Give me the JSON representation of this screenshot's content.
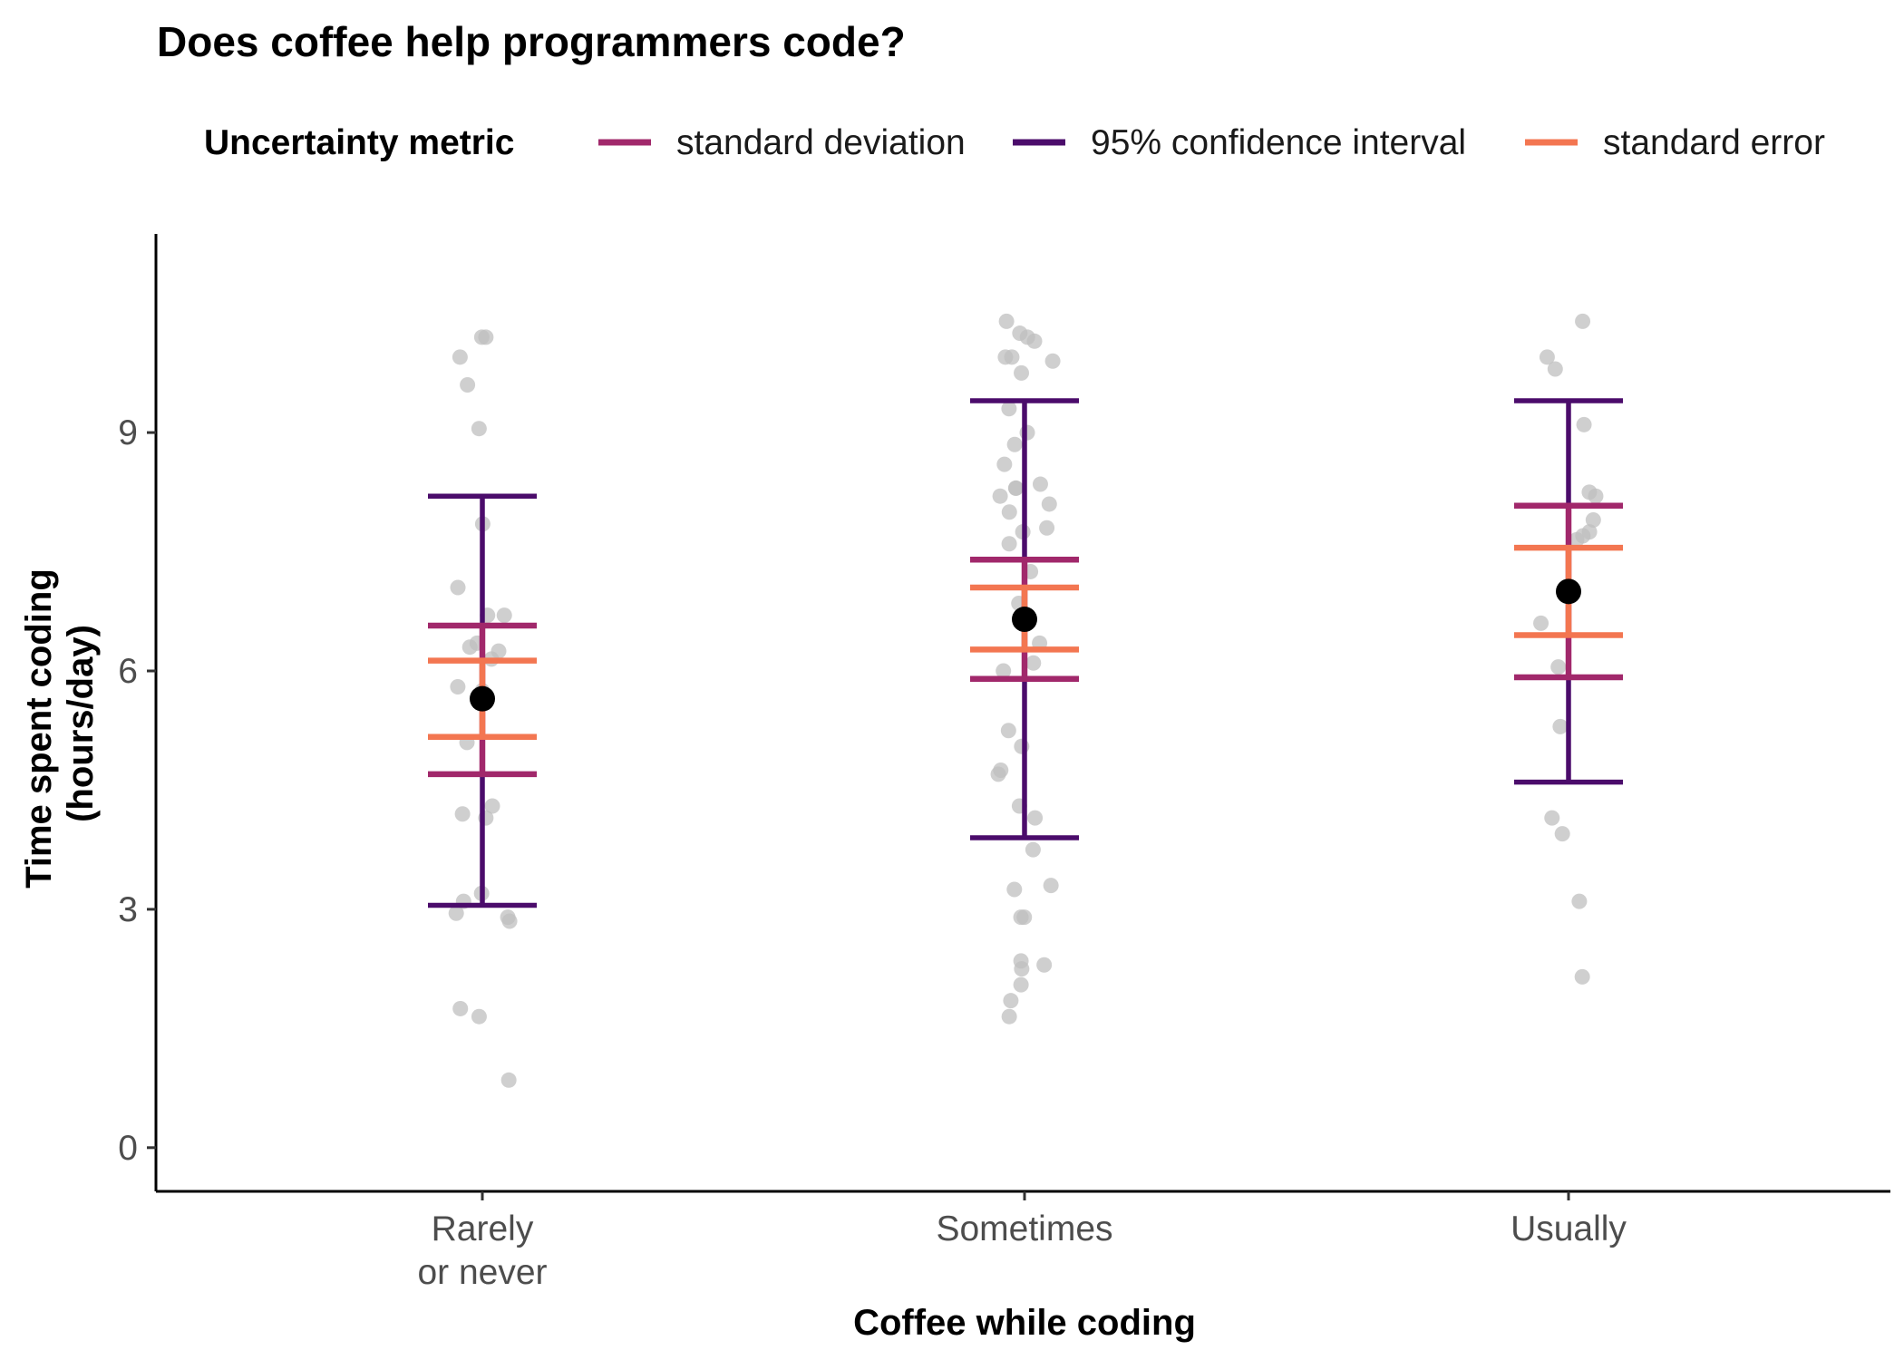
{
  "chart_data": {
    "type": "scatter",
    "title": "Does coffee help programmers code?",
    "xlabel": "Coffee while coding",
    "ylabel_lines": [
      "Time spent coding",
      "(hours/day)"
    ],
    "categories": [
      [
        "Rarely",
        "or never"
      ],
      [
        "Sometimes"
      ],
      [
        "Usually"
      ]
    ],
    "ylim": [
      -0.55,
      11.5
    ],
    "yticks": [
      0,
      3,
      6,
      9
    ],
    "grid": false,
    "legend": {
      "title": "Uncertainty metric",
      "position": "top",
      "entries": [
        {
          "key": "sd",
          "label": "standard deviation",
          "color": "#A1286B"
        },
        {
          "key": "ci",
          "label": "95% confidence interval",
          "color": "#4B0C6B"
        },
        {
          "key": "se",
          "label": "standard error",
          "color": "#F37651"
        }
      ]
    },
    "mean_color": "#000000",
    "point_color": "#BFBFBF",
    "summaries": [
      {
        "category": "Rarely or never",
        "mean": 5.65,
        "sd": [
          4.7,
          6.57
        ],
        "ci": [
          3.05,
          8.2
        ],
        "se": [
          5.17,
          6.13
        ]
      },
      {
        "category": "Sometimes",
        "mean": 6.65,
        "sd": [
          5.9,
          7.4
        ],
        "ci": [
          3.9,
          9.4
        ],
        "se": [
          6.27,
          7.05
        ]
      },
      {
        "category": "Usually",
        "mean": 7.0,
        "sd": [
          5.92,
          8.08
        ],
        "ci": [
          4.6,
          9.4
        ],
        "se": [
          6.45,
          7.55
        ]
      }
    ],
    "points": [
      {
        "category": 0,
        "y": [
          10.2,
          10.2,
          9.95,
          9.6,
          9.05,
          7.85,
          7.05,
          6.7,
          6.7,
          6.35,
          6.3,
          6.25,
          6.15,
          5.8,
          5.75,
          5.1,
          4.3,
          4.2,
          4.15,
          3.2,
          3.1,
          2.95,
          2.9,
          2.85,
          1.75,
          1.65,
          0.85
        ]
      },
      {
        "category": 1,
        "y": [
          10.4,
          10.25,
          10.2,
          10.15,
          9.95,
          9.95,
          9.9,
          9.75,
          9.3,
          9.0,
          8.85,
          8.6,
          8.35,
          8.3,
          8.3,
          8.2,
          8.1,
          8.0,
          7.8,
          7.75,
          7.6,
          7.25,
          6.85,
          6.35,
          6.1,
          6.0,
          5.25,
          5.05,
          4.75,
          4.7,
          4.3,
          4.15,
          3.75,
          3.3,
          3.25,
          2.9,
          2.9,
          2.35,
          2.3,
          2.25,
          2.05,
          1.85,
          1.65
        ]
      },
      {
        "category": 2,
        "y": [
          10.4,
          9.95,
          9.8,
          9.1,
          8.25,
          8.2,
          7.9,
          7.75,
          7.7,
          7.65,
          7.05,
          6.6,
          6.05,
          5.3,
          4.15,
          3.95,
          3.1,
          2.15
        ]
      }
    ]
  }
}
